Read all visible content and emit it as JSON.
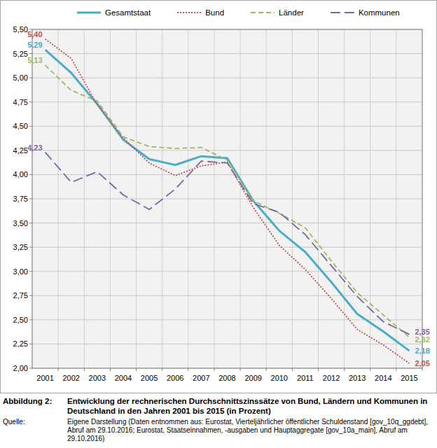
{
  "chart_data": {
    "type": "line",
    "title": "Entwicklung der rechnerischen Durchschnittszinssätze von Bund, Ländern und Kommunen in Deutschland in den Jahren 2001 bis 2015 (in Prozent)",
    "annotations": [
      "Abbildung 2:",
      "Quelle:",
      "Eigene Darstellung (Daten entnommen aus: Eurostat, Vierteljährlicher öffentlicher Schuldenstand [gov_10q_ggdebt], Abruf am 29.10.2016; Eurostat, Staatseinnahmen, -ausgaben und Hauptaggregate [gov_10a_main], Abruf am 29.10.2016)"
    ],
    "categories": [
      "2001",
      "2002",
      "2003",
      "2004",
      "2005",
      "2006",
      "2007",
      "2008",
      "2009",
      "2010",
      "2011",
      "2012",
      "2013",
      "2014",
      "2015"
    ],
    "series": [
      {
        "name": "Gesamtstaat",
        "color": "#4bacc6",
        "line_style": "solid",
        "values": [
          5.29,
          5.05,
          4.73,
          4.36,
          4.16,
          4.1,
          4.19,
          4.17,
          3.73,
          3.42,
          3.2,
          2.89,
          2.56,
          2.38,
          2.18
        ],
        "value_labels": [
          "5,29",
          null,
          null,
          null,
          null,
          null,
          null,
          null,
          null,
          null,
          null,
          null,
          null,
          null,
          "2,18"
        ]
      },
      {
        "name": "Bund",
        "color": "#c0504d",
        "line_style": "dotted",
        "values": [
          5.4,
          5.2,
          4.72,
          4.38,
          4.12,
          3.99,
          4.09,
          4.13,
          3.66,
          3.27,
          3.02,
          2.72,
          2.4,
          2.24,
          2.05
        ],
        "value_labels": [
          "5,40",
          null,
          null,
          null,
          null,
          null,
          null,
          null,
          null,
          null,
          null,
          null,
          null,
          null,
          "2,05"
        ]
      },
      {
        "name": "Länder",
        "color": "#9bbb59",
        "line_style": "dashed",
        "values": [
          5.13,
          4.87,
          4.76,
          4.39,
          4.29,
          4.27,
          4.28,
          4.15,
          3.73,
          3.6,
          3.45,
          3.11,
          2.78,
          2.55,
          2.32
        ],
        "value_labels": [
          "5,13",
          null,
          null,
          null,
          null,
          null,
          null,
          null,
          null,
          null,
          null,
          null,
          null,
          null,
          "2,32"
        ]
      },
      {
        "name": "Kommunen",
        "color": "#8064a2",
        "line_style": "longdash",
        "values": [
          4.23,
          3.92,
          4.03,
          3.79,
          3.64,
          3.85,
          4.14,
          4.12,
          3.7,
          3.61,
          3.38,
          3.06,
          2.74,
          2.48,
          2.35
        ],
        "value_labels": [
          "4,23",
          null,
          null,
          null,
          null,
          null,
          null,
          null,
          null,
          null,
          null,
          null,
          null,
          null,
          "2,35"
        ]
      }
    ],
    "ylim": [
      2.0,
      5.5
    ],
    "yticks": [
      {
        "value": 2.0,
        "label": "2,00"
      },
      {
        "value": 2.25,
        "label": "2,25"
      },
      {
        "value": 2.5,
        "label": "2,50"
      },
      {
        "value": 2.75,
        "label": "2,75"
      },
      {
        "value": 3.0,
        "label": "3,00"
      },
      {
        "value": 3.25,
        "label": "3,25"
      },
      {
        "value": 3.5,
        "label": "3,50"
      },
      {
        "value": 3.75,
        "label": "3,75"
      },
      {
        "value": 4.0,
        "label": "4,00"
      },
      {
        "value": 4.25,
        "label": "4,25"
      },
      {
        "value": 4.5,
        "label": "4,50"
      },
      {
        "value": 4.75,
        "label": "4,75"
      },
      {
        "value": 5.0,
        "label": "5,00"
      },
      {
        "value": 5.25,
        "label": "5,25"
      },
      {
        "value": 5.5,
        "label": "5,50"
      }
    ],
    "grid": true,
    "legend": "top",
    "data_labels": true
  }
}
